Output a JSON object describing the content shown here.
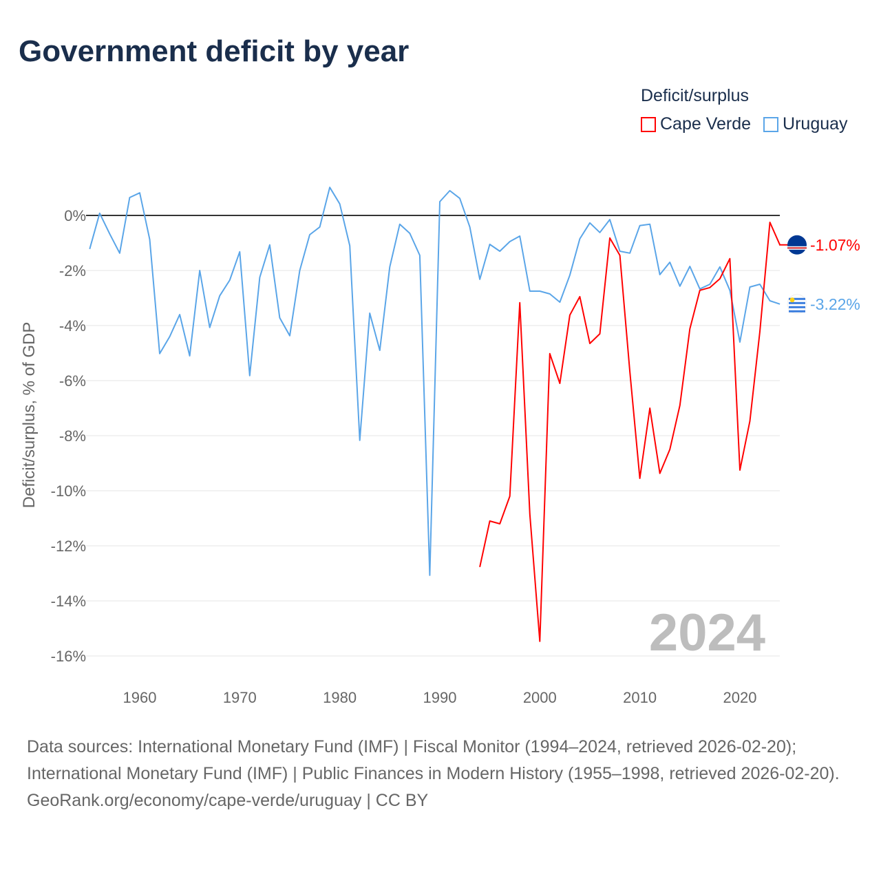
{
  "title": "Government deficit by year",
  "chart_data": {
    "type": "line",
    "title": "Government deficit by year",
    "ylabel": "Deficit/surplus, % of GDP",
    "xlabel": "",
    "legend_title": "Deficit/surplus",
    "legend_position": "top-right",
    "ylim": [
      -16.5,
      1.5
    ],
    "xlim": [
      1955,
      2024
    ],
    "yticks": [
      0,
      -2,
      -4,
      -6,
      -8,
      -10,
      -12,
      -14,
      -16
    ],
    "ytick_labels": [
      "0%",
      "-2%",
      "-4%",
      "-6%",
      "-8%",
      "-10%",
      "-12%",
      "-14%",
      "-16%"
    ],
    "xticks": [
      1960,
      1970,
      1980,
      1990,
      2000,
      2010,
      2020
    ],
    "xtick_labels": [
      "1960",
      "1970",
      "1980",
      "1990",
      "2000",
      "2010",
      "2020"
    ],
    "grid": true,
    "watermark_year": "2024",
    "series": [
      {
        "name": "Cape Verde",
        "color": "#ff0000",
        "end_label": "-1.07%",
        "flag": "cape-verde-flag",
        "start_year": 1994,
        "values": [
          -12.77,
          -11.1,
          -11.2,
          -10.2,
          -3.17,
          -10.85,
          -15.47,
          -5.02,
          -6.1,
          -3.62,
          -2.95,
          -4.65,
          -4.3,
          -0.82,
          -1.45,
          -5.67,
          -9.55,
          -7.0,
          -9.37,
          -8.5,
          -6.9,
          -4.12,
          -2.72,
          -2.62,
          -2.3,
          -1.57,
          -9.25,
          -7.47,
          -4.22,
          -0.25,
          -1.07
        ]
      },
      {
        "name": "Uruguay",
        "color": "#5aa5e8",
        "end_label": "-3.22%",
        "flag": "uruguay-flag",
        "start_year": 1955,
        "values": [
          -1.22,
          0.08,
          -0.67,
          -1.37,
          0.65,
          0.82,
          -0.87,
          -5.02,
          -4.4,
          -3.6,
          -5.1,
          -2.0,
          -4.07,
          -2.92,
          -2.35,
          -1.32,
          -5.82,
          -2.25,
          -1.07,
          -3.72,
          -4.37,
          -2.0,
          -0.7,
          -0.42,
          1.02,
          0.42,
          -1.1,
          -8.17,
          -3.55,
          -4.9,
          -1.87,
          -0.32,
          -0.65,
          -1.45,
          -13.07,
          0.5,
          0.9,
          0.62,
          -0.42,
          -2.32,
          -1.05,
          -1.3,
          -0.95,
          -0.75,
          -2.75,
          -2.75,
          -2.85,
          -3.15,
          -2.17,
          -0.85,
          -0.27,
          -0.62,
          -0.15,
          -1.3,
          -1.37,
          -0.37,
          -0.32,
          -2.15,
          -1.7,
          -2.57,
          -1.85,
          -2.67,
          -2.5,
          -1.87,
          -2.72,
          -4.6,
          -2.6,
          -2.5,
          -3.1,
          -3.22
        ]
      }
    ]
  },
  "footer": {
    "sources": "Data sources: International Monetary Fund (IMF) | Fiscal Monitor (1994–2024, retrieved 2026-02-20); International Monetary Fund (IMF) | Public Finances in Modern History (1955–1998, retrieved 2026-02-20).",
    "credit": "GeoRank.org/economy/cape-verde/uruguay | CC BY"
  }
}
